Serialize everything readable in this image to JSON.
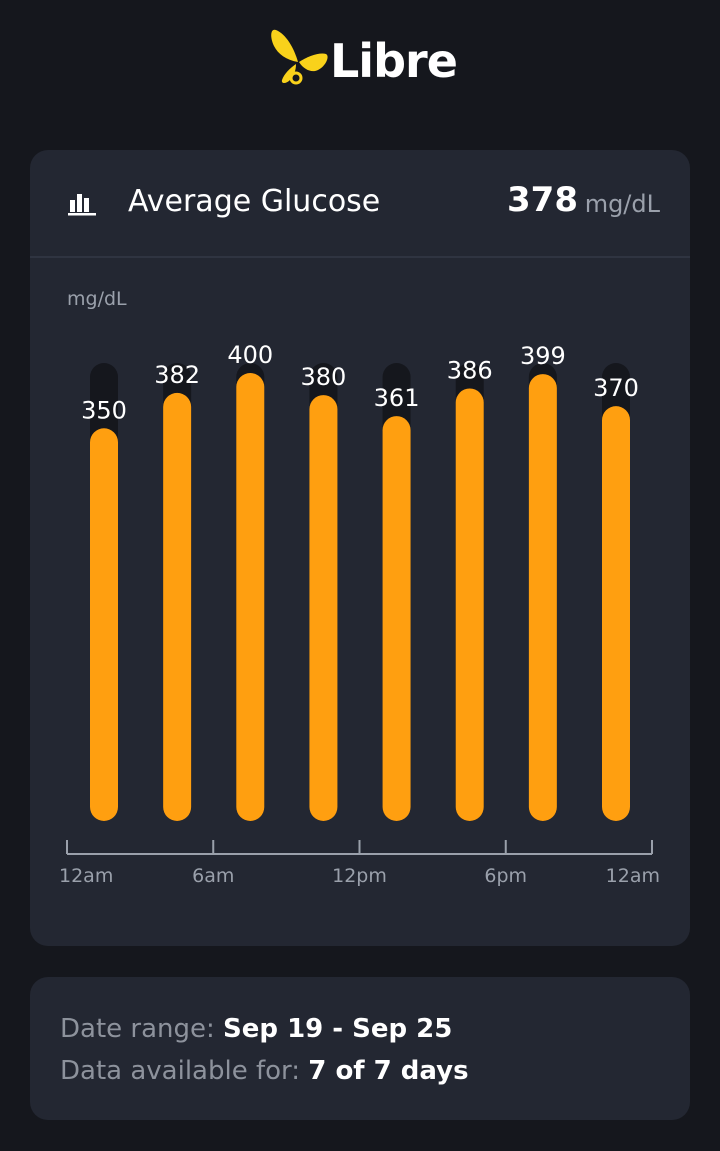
{
  "app": {
    "name": "Libre"
  },
  "icons": {
    "logo": "butterfly-logo-icon",
    "chart": "bar-chart-icon"
  },
  "colors": {
    "accent": "#ff9f10",
    "logo": "#f9d21b",
    "card": "#232732",
    "background": "#15171d"
  },
  "card": {
    "title": "Average Glucose",
    "value": "378",
    "unit": "mg/dL"
  },
  "chart_data": {
    "type": "bar",
    "ylabel": "mg/dL",
    "ylim": [
      0,
      400
    ],
    "values": [
      350,
      382,
      400,
      380,
      361,
      386,
      399,
      370
    ],
    "xticks": [
      "12am",
      "6am",
      "12pm",
      "6pm",
      "12am"
    ]
  },
  "info": {
    "date_range_label": "Date range:",
    "date_range_value": "Sep 19 - Sep 25",
    "data_available_label": "Data available for:",
    "data_available_value": "7 of 7 days"
  }
}
